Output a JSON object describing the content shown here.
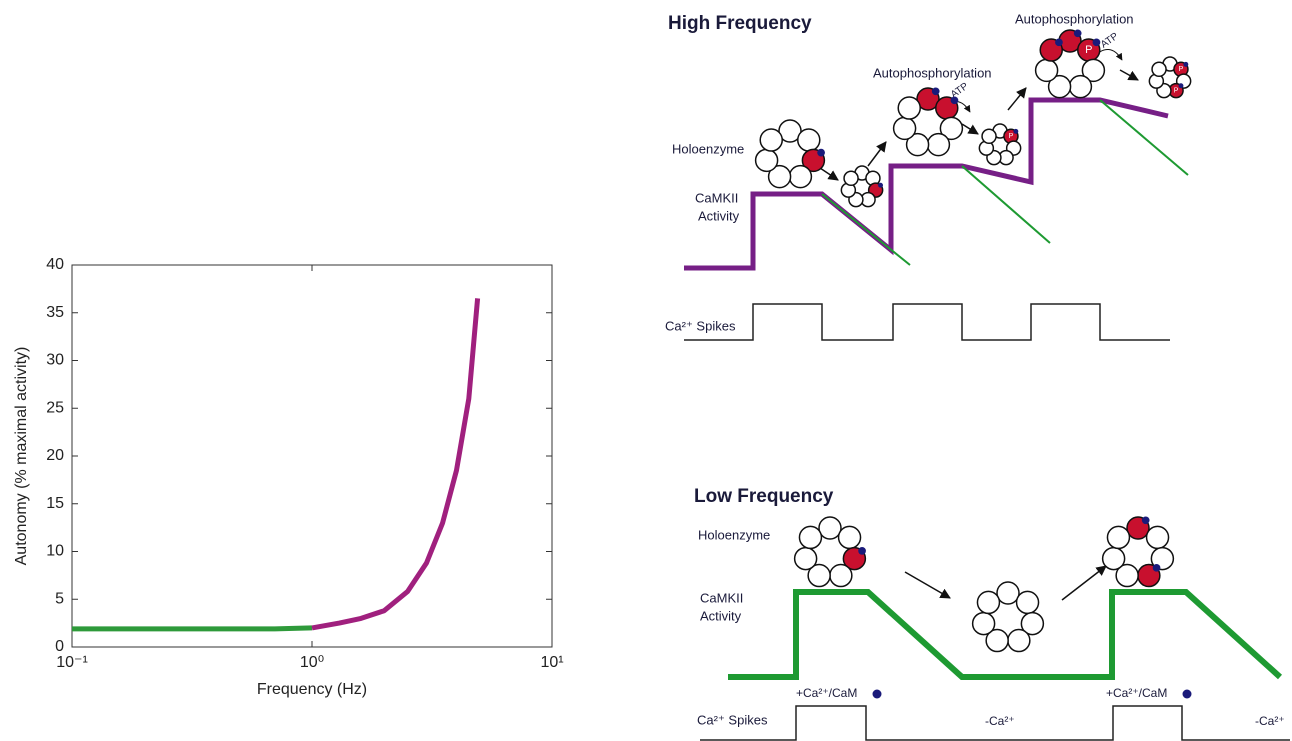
{
  "chart_data": {
    "type": "line",
    "xlabel": "Frequency (Hz)",
    "ylabel": "Autonomy (% maximal activity)",
    "x": [
      0.1,
      0.2,
      0.3,
      0.5,
      0.7,
      1.0,
      1.3,
      1.6,
      2.0,
      2.5,
      3.0,
      3.5,
      4.0,
      4.5,
      4.9
    ],
    "series": [
      {
        "color": "#2e9a3a",
        "values": [
          1.9,
          1.9,
          1.9,
          1.9,
          1.9,
          2.0,
          null,
          null,
          null,
          null,
          null,
          null,
          null,
          null,
          null
        ]
      },
      {
        "color": "#a0207e",
        "values": [
          null,
          null,
          null,
          null,
          null,
          2.0,
          2.5,
          3.0,
          3.8,
          5.8,
          8.8,
          13,
          18.5,
          26,
          36.5
        ]
      }
    ],
    "xscale": "log",
    "xlim": [
      0.1,
      10
    ],
    "xticks": [
      {
        "value": 0.1,
        "label": "10⁻¹"
      },
      {
        "value": 1,
        "label": "10⁰"
      },
      {
        "value": 10,
        "label": "10¹"
      }
    ],
    "ylim": [
      0,
      40
    ],
    "yticks": [
      0,
      5,
      10,
      15,
      20,
      25,
      30,
      35,
      40
    ],
    "grid": false
  },
  "high_frequency": {
    "title": "High Frequency",
    "holoenzyme": "Holoenzyme",
    "activity": [
      "CaMKII",
      "Activity"
    ],
    "autophosphorylation": [
      "Autophosphorylation",
      "Autophosphorylation"
    ],
    "atp": [
      "ATP",
      "ATP"
    ],
    "phospho": "P",
    "spikes": "Ca²⁺ Spikes"
  },
  "low_frequency": {
    "title": "Low Frequency",
    "holoenzyme": "Holoenzyme",
    "activity": [
      "CaMKII",
      "Activity"
    ],
    "spikes": "Ca²⁺ Spikes",
    "ca_on": [
      "+Ca²⁺/CaM",
      "+Ca²⁺/CaM"
    ],
    "ca_off": [
      "-Ca²⁺",
      "-Ca²⁺"
    ]
  }
}
